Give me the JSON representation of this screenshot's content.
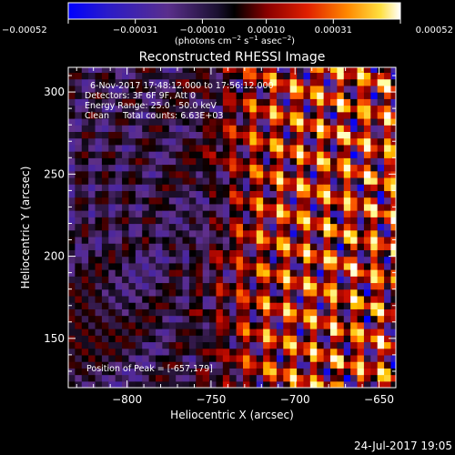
{
  "chart_data": {
    "type": "heatmap",
    "title": "Reconstructed RHESSI Image",
    "annotation_lines": [
      "6-Nov-2017 17:48:12.000 to 17:56:12.000",
      "Detectors: 3F 6F 9F, Att 0",
      "Energy Range: 25.0 - 50.0 keV",
      "Clean     Total counts: 6.63E+03"
    ],
    "peak_label": "Position of Peak = [-657,179]",
    "peak_position": [
      -657,
      179
    ],
    "xlabel": "Heliocentric X (arcsec)",
    "ylabel": "Heliocentric Y (arcsec)",
    "xlim": [
      -835,
      -640
    ],
    "ylim": [
      120,
      315
    ],
    "x_ticks": [
      -800,
      -750,
      -700,
      -650
    ],
    "x_tick_labels": [
      "−800",
      "−750",
      "−700",
      "−650"
    ],
    "y_ticks": [
      150,
      200,
      250,
      300
    ],
    "y_tick_labels": [
      "150",
      "200",
      "250",
      "300"
    ],
    "colorbar": {
      "range": [
        -0.00052,
        0.00052
      ],
      "ticks": [
        -0.00052,
        -0.00031,
        -0.0001,
        0.0001,
        0.00031,
        0.00052
      ],
      "tick_labels": [
        "−0.00052",
        "−0.00031",
        "−0.00010",
        "0.00010",
        "0.00031",
        "0.00052"
      ],
      "units_text": "(photons cm",
      "units_sup1": "−2",
      "units_mid": " s",
      "units_sup2": "−1",
      "units_end": " asec",
      "units_sup3": "−2",
      "units_close": ")"
    },
    "pixel_size_arcsec": 4,
    "color_stops": [
      "#0000ff",
      "#3a1fb0",
      "#60308a",
      "#000000",
      "#8b0000",
      "#d01000",
      "#ff6000",
      "#ffc000",
      "#ffffa0",
      "#ffffff"
    ]
  },
  "footer_timestamp": "24-Jul-2017 19:05"
}
